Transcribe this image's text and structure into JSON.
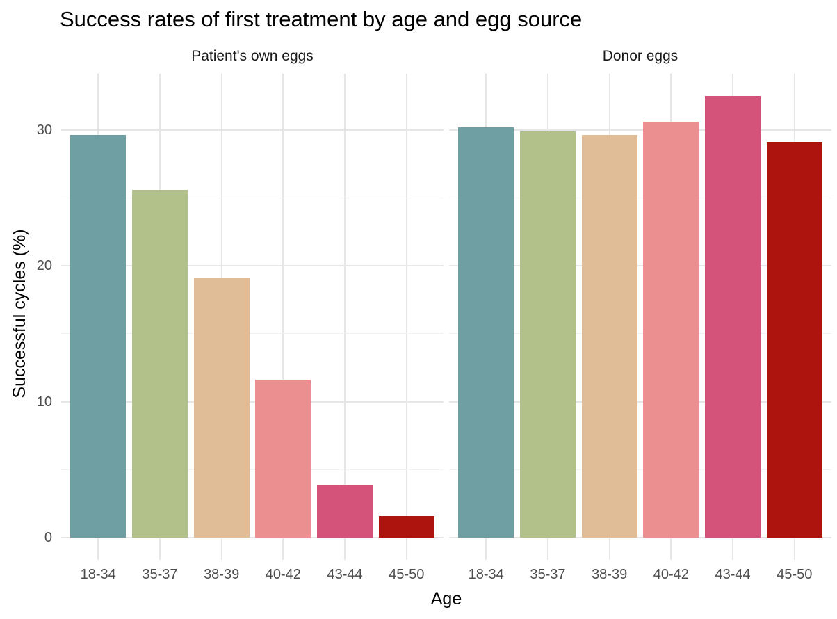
{
  "chart_data": {
    "type": "bar",
    "title": "Success rates of first treatment by age and egg source",
    "xlabel": "Age",
    "ylabel": "Successful cycles (%)",
    "categories": [
      "18-34",
      "35-37",
      "38-39",
      "40-42",
      "43-44",
      "45-50"
    ],
    "facets": [
      {
        "label": "Patient's own eggs",
        "values": [
          29.6,
          25.6,
          19.1,
          11.6,
          3.9,
          1.6
        ]
      },
      {
        "label": "Donor eggs",
        "values": [
          30.2,
          29.9,
          29.6,
          30.6,
          32.5,
          29.1
        ]
      }
    ],
    "bar_colors": [
      "#6f9fa2",
      "#b2c189",
      "#e0bd97",
      "#ec8f90",
      "#d4537a",
      "#ad140e"
    ],
    "y_ticks": [
      0,
      10,
      20,
      30
    ],
    "y_minor_ticks": [
      5,
      15,
      25
    ],
    "ylim": [
      -1.625,
      34.125
    ],
    "x_domain": [
      0.4,
      6.6
    ],
    "bar_rel_width": 0.9,
    "grid": true,
    "legend": "none",
    "colors": {
      "background": "#ffffff",
      "major_grid": "#e6e6e6",
      "minor_grid": "#f2f2f2",
      "tick_label": "#4d4d4d",
      "strip_label": "#1a1a1a",
      "title": "#000000",
      "axis_title": "#000000"
    }
  }
}
